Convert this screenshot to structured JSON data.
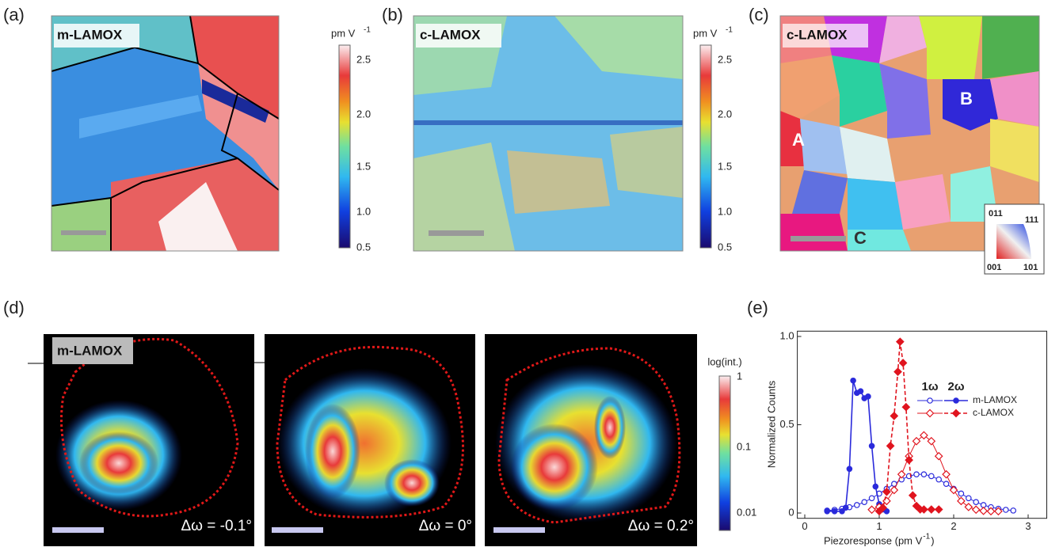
{
  "figure": {
    "panels": {
      "a": {
        "label": "(a)",
        "tag": "m-LAMOX",
        "colorbar": {
          "unit": "pm V",
          "unit_sup": "-1",
          "ticks": [
            "2.5",
            "2.0",
            "1.5",
            "1.0",
            "0.5"
          ]
        }
      },
      "b": {
        "label": "(b)",
        "tag": "c-LAMOX",
        "colorbar": {
          "unit": "pm V",
          "unit_sup": "-1",
          "ticks": [
            "2.5",
            "2.0",
            "1.5",
            "1.0",
            "0.5"
          ]
        }
      },
      "c": {
        "label": "(c)",
        "tag": "c-LAMOX",
        "grain_labels": [
          "A",
          "B",
          "C"
        ],
        "ipf_key": [
          "011",
          "111",
          "001",
          "101"
        ]
      },
      "d": {
        "label": "(d)",
        "tag": "m-LAMOX",
        "captions": [
          "Δω = -0.1°",
          "Δω = 0°",
          "Δω = 0.2°"
        ],
        "colorbar": {
          "title": "log(int.)",
          "ticks": [
            "1",
            "0.1",
            "0.01"
          ]
        }
      }
    }
  },
  "chart_data": {
    "type": "line",
    "panel_label": "(e)",
    "x_label": "Piezoresponse (pm V",
    "x_label_sup": "-1",
    "x_label_end": ")",
    "y_label": "Normalized Counts",
    "xlim": [
      -0.1,
      3.25
    ],
    "ylim": [
      -0.03,
      1.03
    ],
    "xticks": [
      0,
      1,
      2,
      3
    ],
    "yticks": [
      0,
      0.5,
      {
        "value": 1,
        "label": "1.0"
      }
    ],
    "legend_columns": [
      "1ω",
      "2ω"
    ],
    "series": [
      {
        "name": "m-LAMOX",
        "color": "#2a2adb",
        "first_harmonic": {
          "x": [
            0.3,
            0.4,
            0.5,
            0.6,
            0.7,
            0.8,
            0.9,
            1.0,
            1.1,
            1.2,
            1.3,
            1.4,
            1.5,
            1.6,
            1.7,
            1.8,
            1.9,
            2.0,
            2.1,
            2.2,
            2.3,
            2.4,
            2.5,
            2.6,
            2.7,
            2.8
          ],
          "values": [
            0.014,
            0.018,
            0.024,
            0.033,
            0.045,
            0.062,
            0.084,
            0.11,
            0.137,
            0.165,
            0.19,
            0.209,
            0.219,
            0.219,
            0.209,
            0.19,
            0.165,
            0.137,
            0.11,
            0.084,
            0.062,
            0.045,
            0.033,
            0.024,
            0.018,
            0.014
          ]
        },
        "second_harmonic": {
          "x": [
            0.3,
            0.4,
            0.5,
            0.55,
            0.6,
            0.65,
            0.7,
            0.75,
            0.8,
            0.85,
            0.9,
            0.95,
            1.0,
            1.05,
            1.1
          ],
          "values": [
            0.01,
            0.01,
            0.01,
            0.03,
            0.25,
            0.75,
            0.68,
            0.69,
            0.65,
            0.66,
            0.38,
            0.15,
            0.05,
            0.02,
            0.01
          ]
        }
      },
      {
        "name": "c-LAMOX",
        "color": "#e0141e",
        "first_harmonic": {
          "x": [
            0.9,
            1.0,
            1.1,
            1.2,
            1.3,
            1.4,
            1.5,
            1.6,
            1.7,
            1.8,
            1.9,
            2.0,
            2.1,
            2.2,
            2.3,
            2.4,
            2.5,
            2.6
          ],
          "values": [
            0.019,
            0.034,
            0.068,
            0.13,
            0.219,
            0.322,
            0.407,
            0.44,
            0.407,
            0.322,
            0.219,
            0.13,
            0.068,
            0.034,
            0.019,
            0.012,
            0.01,
            0.01
          ]
        },
        "second_harmonic": {
          "x": [
            1.0,
            1.05,
            1.1,
            1.15,
            1.2,
            1.25,
            1.28,
            1.32,
            1.36,
            1.4,
            1.45,
            1.5,
            1.55,
            1.6,
            1.7,
            1.8
          ],
          "values": [
            0.01,
            0.03,
            0.12,
            0.38,
            0.55,
            0.8,
            0.97,
            0.85,
            0.6,
            0.3,
            0.1,
            0.04,
            0.02,
            0.02,
            0.02,
            0.02
          ]
        }
      }
    ]
  }
}
